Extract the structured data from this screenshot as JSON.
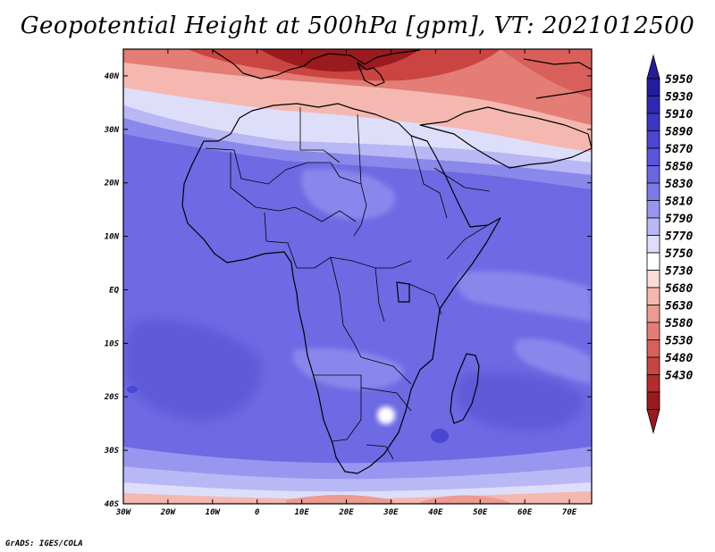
{
  "title": "Geopotential Height at 500hPa [gpm], VT: 2021012500",
  "footer": "GrADS: IGES/COLA",
  "map": {
    "lon_range": [
      -30,
      75
    ],
    "lat_range": [
      -40,
      45
    ],
    "x_ticks": [
      {
        "lon": -30,
        "label": "30W"
      },
      {
        "lon": -20,
        "label": "20W"
      },
      {
        "lon": -10,
        "label": "10W"
      },
      {
        "lon": 0,
        "label": "0"
      },
      {
        "lon": 10,
        "label": "10E"
      },
      {
        "lon": 20,
        "label": "20E"
      },
      {
        "lon": 30,
        "label": "30E"
      },
      {
        "lon": 40,
        "label": "40E"
      },
      {
        "lon": 50,
        "label": "50E"
      },
      {
        "lon": 60,
        "label": "60E"
      },
      {
        "lon": 70,
        "label": "70E"
      }
    ],
    "y_ticks": [
      {
        "lat": 40,
        "label": "40N"
      },
      {
        "lat": 30,
        "label": "30N"
      },
      {
        "lat": 20,
        "label": "20N"
      },
      {
        "lat": 10,
        "label": "10N"
      },
      {
        "lat": 0,
        "label": "EQ"
      },
      {
        "lat": -10,
        "label": "10S"
      },
      {
        "lat": -20,
        "label": "20S"
      },
      {
        "lat": -30,
        "label": "30S"
      },
      {
        "lat": -40,
        "label": "40S"
      }
    ]
  },
  "colorbar": {
    "levels": [
      "5950",
      "5930",
      "5910",
      "5890",
      "5870",
      "5850",
      "5830",
      "5810",
      "5790",
      "5770",
      "5750",
      "5730",
      "5680",
      "5630",
      "5580",
      "5530",
      "5480",
      "5430"
    ],
    "colors": [
      "#231c9c",
      "#2e29b4",
      "#3a36c6",
      "#4a47d2",
      "#5955dc",
      "#6a66e2",
      "#7d79e8",
      "#9896ef",
      "#b9b8f5",
      "#dedefb",
      "#ffffff",
      "#fbdcd9",
      "#f4b8b1",
      "#ec9a92",
      "#e37d75",
      "#d9605a",
      "#ca4541",
      "#b32b2d",
      "#9a1a1e"
    ]
  },
  "chart_data": {
    "type": "heatmap",
    "title": "Geopotential Height at 500hPa [gpm], VT: 2021012500",
    "variable": "Geopotential Height at 500hPa",
    "units": "gpm",
    "valid_time": "2021012500",
    "x_range_lon": [
      -30,
      75
    ],
    "y_range_lat": [
      -40,
      45
    ],
    "contour_levels": [
      5430,
      5480,
      5530,
      5580,
      5630,
      5680,
      5730,
      5750,
      5770,
      5790,
      5810,
      5830,
      5850,
      5870,
      5890,
      5910,
      5930,
      5950
    ],
    "colorbar_min_label": "5430",
    "colorbar_max_label": "5950",
    "latitude_profile": [
      {
        "lat": 42,
        "value": 5520
      },
      {
        "lat": 38,
        "value": 5650
      },
      {
        "lat": 35,
        "value": 5740
      },
      {
        "lat": 32,
        "value": 5790
      },
      {
        "lat": 28,
        "value": 5840
      },
      {
        "lat": 22,
        "value": 5870
      },
      {
        "lat": 10,
        "value": 5875
      },
      {
        "lat": 0,
        "value": 5880
      },
      {
        "lat": -10,
        "value": 5885
      },
      {
        "lat": -20,
        "value": 5880
      },
      {
        "lat": -28,
        "value": 5860
      },
      {
        "lat": -33,
        "value": 5820
      },
      {
        "lat": -36,
        "value": 5770
      },
      {
        "lat": -39,
        "value": 5700
      }
    ]
  }
}
